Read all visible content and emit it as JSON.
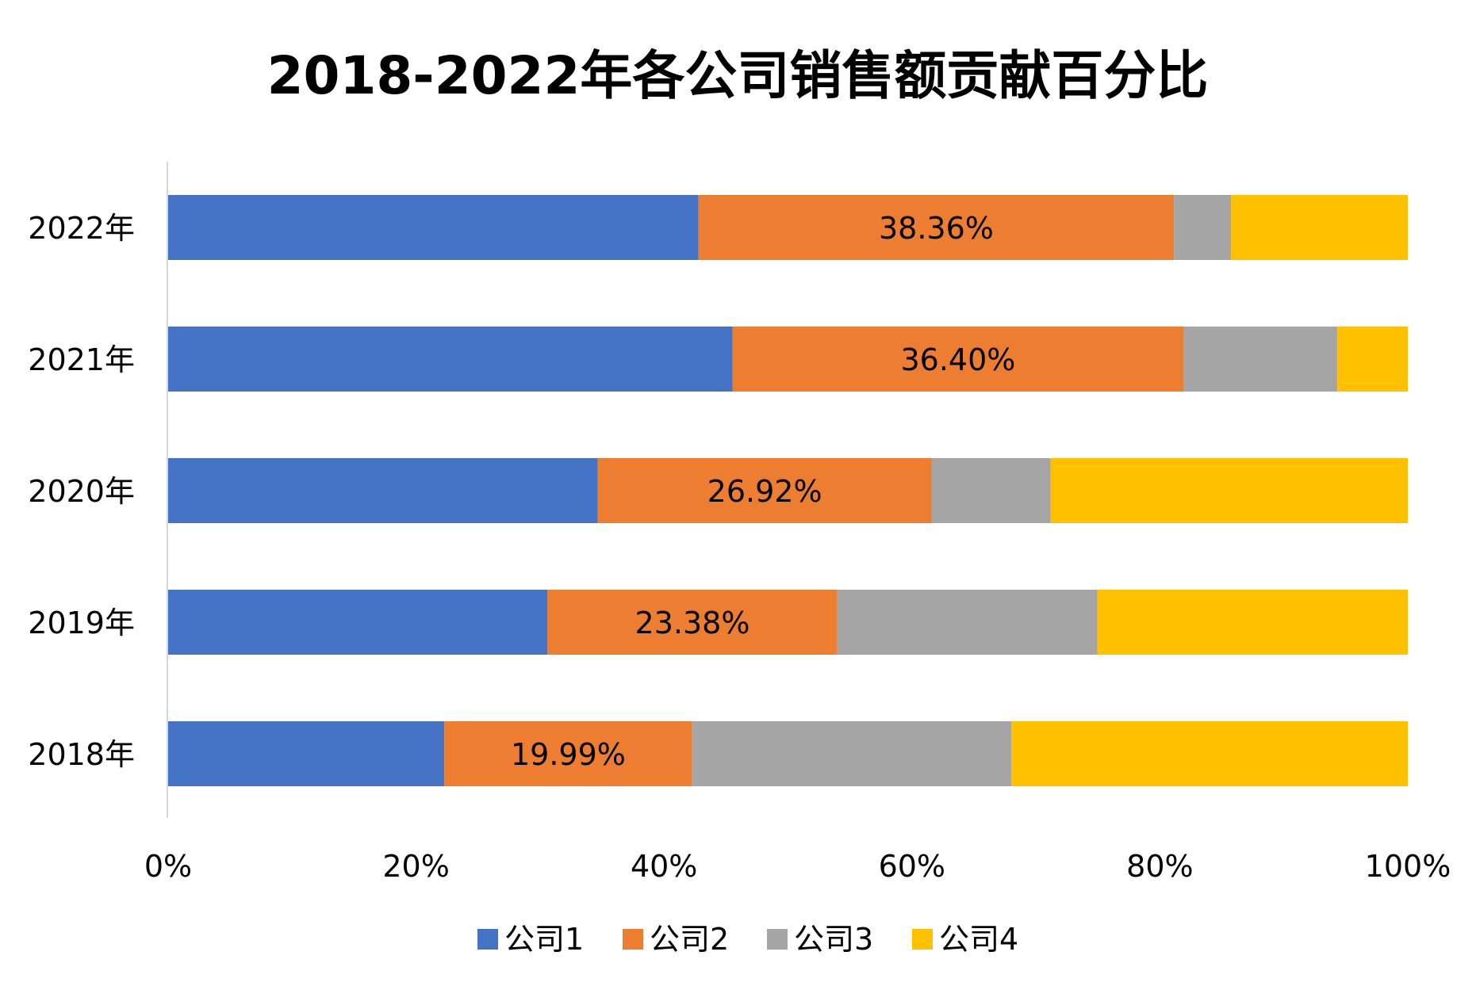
{
  "chart_data": {
    "type": "bar",
    "orientation": "horizontal",
    "stacked": "percent",
    "title": "2018-2022年各公司销售额贡献百分比",
    "categories": [
      "2022年",
      "2021年",
      "2020年",
      "2019年",
      "2018年"
    ],
    "series": [
      {
        "name": "公司1",
        "color": "#4472C4",
        "values": [
          42.78,
          45.52,
          34.66,
          30.6,
          22.28
        ]
      },
      {
        "name": "公司2",
        "color": "#ED7D31",
        "values": [
          38.36,
          36.4,
          26.92,
          23.38,
          19.99
        ],
        "labels": [
          "38.36%",
          "36.40%",
          "26.92%",
          "23.38%",
          "19.99%"
        ]
      },
      {
        "name": "公司3",
        "color": "#A5A5A5",
        "values": [
          4.6,
          12.4,
          9.6,
          20.98,
          25.74
        ]
      },
      {
        "name": "公司4",
        "color": "#FFC000",
        "values": [
          14.26,
          5.68,
          28.82,
          25.04,
          31.99
        ]
      }
    ],
    "xlim": [
      0,
      100
    ],
    "xticks": [
      "0%",
      "20%",
      "40%",
      "60%",
      "80%",
      "100%"
    ],
    "grid": false,
    "legend": "bottom"
  }
}
